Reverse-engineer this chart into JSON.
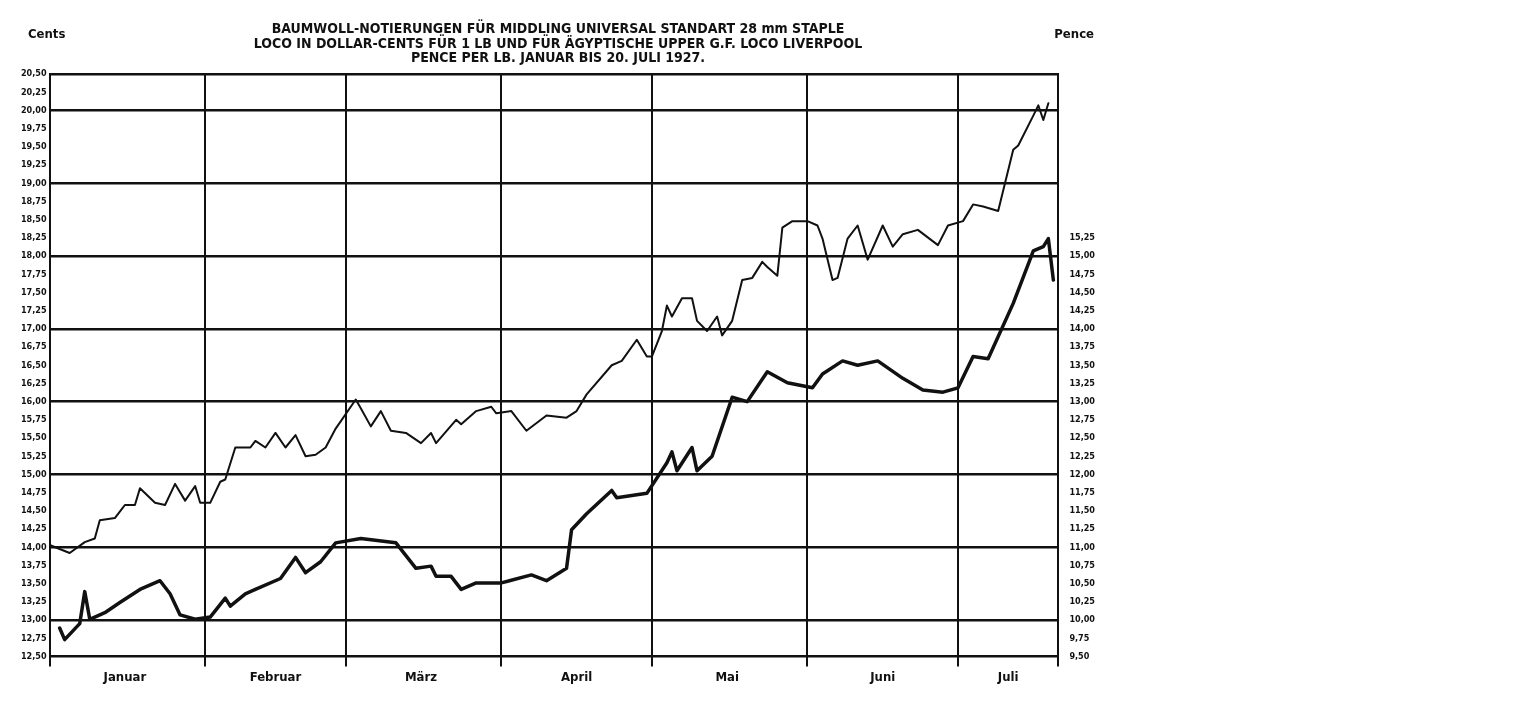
{
  "chart_data": {
    "type": "line",
    "title": [
      "BAUMWOLL-NOTIERUNGEN FÜR MIDDLING UNIVERSAL STANDART 28 mm STAPLE",
      "LOCO IN DOLLAR-CENTS FÜR 1 LB UND FÜR ÄGYPTISCHE UPPER G.F. LOCO LIVERPOOL",
      "PENCE PER LB. JANUAR BIS 20. JULI 1927."
    ],
    "ylabel": "Cents",
    "y2label": "Pence",
    "xlim": [
      "1927-01-01",
      "1927-07-21"
    ],
    "xticks": [
      {
        "value": "1927-01-01",
        "label": null
      },
      {
        "value": "1927-01-16",
        "label": "Januar"
      },
      {
        "value": "1927-02-01",
        "label": null
      },
      {
        "value": "1927-02-15",
        "label": "Februar"
      },
      {
        "value": "1927-03-01",
        "label": null
      },
      {
        "value": "1927-03-16",
        "label": "März"
      },
      {
        "value": "1927-04-01",
        "label": null
      },
      {
        "value": "1927-04-16",
        "label": "April"
      },
      {
        "value": "1927-05-01",
        "label": null
      },
      {
        "value": "1927-05-16",
        "label": "Mai"
      },
      {
        "value": "1927-06-01",
        "label": null
      },
      {
        "value": "1927-06-16",
        "label": "Juni"
      },
      {
        "value": "1927-07-01",
        "label": null
      },
      {
        "value": "1927-07-11",
        "label": "Juli"
      },
      {
        "value": "1927-07-21",
        "label": null
      }
    ],
    "ylim": [
      12.5,
      20.5
    ],
    "yticks": [
      {
        "value": 12.5,
        "label": "12,50"
      },
      {
        "value": 12.75,
        "label": "12,75"
      },
      {
        "value": 13,
        "label": "13,00"
      },
      {
        "value": 13.25,
        "label": "13,25"
      },
      {
        "value": 13.5,
        "label": "13,50"
      },
      {
        "value": 13.75,
        "label": "13,75"
      },
      {
        "value": 14,
        "label": "14,00"
      },
      {
        "value": 14.25,
        "label": "14,25"
      },
      {
        "value": 14.5,
        "label": "14,50"
      },
      {
        "value": 14.75,
        "label": "14,75"
      },
      {
        "value": 15,
        "label": "15,00"
      },
      {
        "value": 15.25,
        "label": "15,25"
      },
      {
        "value": 15.5,
        "label": "15,50"
      },
      {
        "value": 15.75,
        "label": "15,75"
      },
      {
        "value": 16,
        "label": "16,00"
      },
      {
        "value": 16.25,
        "label": "16,25"
      },
      {
        "value": 16.5,
        "label": "16,50"
      },
      {
        "value": 16.75,
        "label": "16,75"
      },
      {
        "value": 17,
        "label": "17,00"
      },
      {
        "value": 17.25,
        "label": "17,25"
      },
      {
        "value": 17.5,
        "label": "17,50"
      },
      {
        "value": 17.75,
        "label": "17,75"
      },
      {
        "value": 18,
        "label": "18,00"
      },
      {
        "value": 18.25,
        "label": "18,25"
      },
      {
        "value": 18.5,
        "label": "18,50"
      },
      {
        "value": 18.75,
        "label": "18,75"
      },
      {
        "value": 19,
        "label": "19,00"
      },
      {
        "value": 19.25,
        "label": "19,25"
      },
      {
        "value": 19.5,
        "label": "19,50"
      },
      {
        "value": 19.75,
        "label": "19,75"
      },
      {
        "value": 20,
        "label": "20,00"
      },
      {
        "value": 20.25,
        "label": "20,25"
      },
      {
        "value": 20.5,
        "label": "20,50"
      }
    ],
    "y2lim": [
      9.5,
      17.5
    ],
    "y2ticks": [
      {
        "value": 9.5,
        "label": "9,50"
      },
      {
        "value": 9.75,
        "label": "9,75"
      },
      {
        "value": 10,
        "label": "10,00"
      },
      {
        "value": 10.25,
        "label": "10,25"
      },
      {
        "value": 10.5,
        "label": "10,50"
      },
      {
        "value": 10.75,
        "label": "10,75"
      },
      {
        "value": 11,
        "label": "11,00"
      },
      {
        "value": 11.25,
        "label": "11,25"
      },
      {
        "value": 11.5,
        "label": "11,50"
      },
      {
        "value": 11.75,
        "label": "11,75"
      },
      {
        "value": 12,
        "label": "12,00"
      },
      {
        "value": 12.25,
        "label": "12,25"
      },
      {
        "value": 12.5,
        "label": "12,50"
      },
      {
        "value": 12.75,
        "label": "12,75"
      },
      {
        "value": 13,
        "label": "13,00"
      },
      {
        "value": 13.25,
        "label": "13,25"
      },
      {
        "value": 13.5,
        "label": "13,50"
      },
      {
        "value": 13.75,
        "label": "13,75"
      },
      {
        "value": 14,
        "label": "14,00"
      },
      {
        "value": 14.25,
        "label": "14,25"
      },
      {
        "value": 14.5,
        "label": "14,50"
      },
      {
        "value": 14.75,
        "label": "14,75"
      },
      {
        "value": 15,
        "label": "15,00"
      },
      {
        "value": 15.25,
        "label": "15,25"
      }
    ],
    "grid": true,
    "legend": false,
    "marker": "none",
    "line_style": "solid",
    "series": [
      {
        "color": "#111111",
        "x": [
          "1927-01-01",
          "1927-01-05",
          "1927-01-08",
          "1927-01-10",
          "1927-01-11",
          "1927-01-14",
          "1927-01-16",
          "1927-01-18",
          "1927-01-19",
          "1927-01-22",
          "1927-01-24",
          "1927-01-26",
          "1927-01-28",
          "1927-01-30",
          "1927-01-31",
          "1927-02-02",
          "1927-02-04",
          "1927-02-05",
          "1927-02-07",
          "1927-02-10",
          "1927-02-11",
          "1927-02-13",
          "1927-02-15",
          "1927-02-17",
          "1927-02-19",
          "1927-02-21",
          "1927-02-23",
          "1927-02-25",
          "1927-02-27",
          "1927-03-03",
          "1927-03-04",
          "1927-03-06",
          "1927-03-08",
          "1927-03-10",
          "1927-03-13",
          "1927-03-16",
          "1927-03-18",
          "1927-03-19",
          "1927-03-23",
          "1927-03-24",
          "1927-03-27",
          "1927-03-30",
          "1927-03-31",
          "1927-04-03",
          "1927-04-06",
          "1927-04-10",
          "1927-04-14",
          "1927-04-16",
          "1927-04-18",
          "1927-04-23",
          "1927-04-25",
          "1927-04-28",
          "1927-04-30",
          "1927-05-01",
          "1927-05-03",
          "1927-05-04",
          "1927-05-05",
          "1927-05-07",
          "1927-05-09",
          "1927-05-10",
          "1927-05-12",
          "1927-05-14",
          "1927-05-15",
          "1927-05-17",
          "1927-05-19",
          "1927-05-21",
          "1927-05-23",
          "1927-05-24",
          "1927-05-26",
          "1927-05-27",
          "1927-05-29",
          "1927-06-01",
          "1927-06-03",
          "1927-06-04",
          "1927-06-06",
          "1927-06-07",
          "1927-06-09",
          "1927-06-11",
          "1927-06-13",
          "1927-06-16",
          "1927-06-18",
          "1927-06-20",
          "1927-06-23",
          "1927-06-27",
          "1927-06-29",
          "1927-07-02",
          "1927-07-04",
          "1927-07-06",
          "1927-07-09",
          "1927-07-12",
          "1927-07-13",
          "1927-07-16",
          "1927-07-17",
          "1927-07-18",
          "1927-07-19"
        ],
        "values": [
          14.03,
          13.92,
          14.07,
          14.12,
          14.37,
          14.4,
          14.58,
          14.58,
          14.81,
          14.61,
          14.58,
          14.87,
          14.64,
          14.84,
          14.61,
          14.61,
          14.9,
          14.93,
          15.37,
          15.37,
          15.46,
          15.37,
          15.57,
          15.37,
          15.54,
          15.25,
          15.27,
          15.37,
          15.63,
          16.03,
          15.91,
          15.66,
          15.87,
          15.6,
          15.57,
          15.43,
          15.57,
          15.43,
          15.75,
          15.69,
          15.87,
          15.93,
          15.84,
          15.87,
          15.6,
          15.81,
          15.78,
          15.87,
          16.1,
          16.5,
          16.56,
          16.85,
          16.62,
          16.62,
          16.97,
          17.32,
          17.17,
          17.42,
          17.42,
          17.11,
          16.97,
          17.17,
          16.91,
          17.11,
          17.67,
          17.7,
          17.92,
          17.85,
          17.73,
          18.39,
          18.48,
          18.48,
          18.42,
          18.24,
          17.67,
          17.7,
          18.24,
          18.42,
          17.95,
          18.42,
          18.13,
          18.3,
          18.36,
          18.15,
          18.42,
          18.48,
          18.71,
          18.68,
          18.62,
          19.46,
          19.52,
          19.93,
          20.07,
          19.87,
          20.1
        ]
      },
      {
        "color": "#111111",
        "axis": "y2",
        "x": [
          "1927-01-03",
          "1927-01-04",
          "1927-01-07",
          "1927-01-08",
          "1927-01-09",
          "1927-01-12",
          "1927-01-15",
          "1927-01-19",
          "1927-01-23",
          "1927-01-25",
          "1927-01-27",
          "1927-01-30",
          "1927-02-02",
          "1927-02-05",
          "1927-02-06",
          "1927-02-09",
          "1927-02-11",
          "1927-02-16",
          "1927-02-19",
          "1927-02-21",
          "1927-02-24",
          "1927-02-27",
          "1927-03-04",
          "1927-03-11",
          "1927-03-15",
          "1927-03-18",
          "1927-03-19",
          "1927-03-22",
          "1927-03-24",
          "1927-03-27",
          "1927-04-01",
          "1927-04-07",
          "1927-04-10",
          "1927-04-14",
          "1927-04-15",
          "1927-04-18",
          "1927-04-23",
          "1927-04-24",
          "1927-04-30",
          "1927-05-04",
          "1927-05-05",
          "1927-05-06",
          "1927-05-09",
          "1927-05-10",
          "1927-05-13",
          "1927-05-17",
          "1927-05-20",
          "1927-05-24",
          "1927-05-28",
          "1927-06-02",
          "1927-06-04",
          "1927-06-08",
          "1927-06-11",
          "1927-06-15",
          "1927-06-20",
          "1927-06-24",
          "1927-06-28",
          "1927-07-01",
          "1927-07-04",
          "1927-07-07",
          "1927-07-12",
          "1927-07-16",
          "1927-07-18",
          "1927-07-19",
          "1927-07-20"
        ],
        "values": [
          9.89,
          9.73,
          9.95,
          10.39,
          10.01,
          10.1,
          10.24,
          10.42,
          10.54,
          10.36,
          10.07,
          10.01,
          10.04,
          10.3,
          10.19,
          10.36,
          10.42,
          10.57,
          10.86,
          10.65,
          10.8,
          11.06,
          11.12,
          11.06,
          10.71,
          10.74,
          10.6,
          10.6,
          10.42,
          10.51,
          10.51,
          10.62,
          10.54,
          10.71,
          11.24,
          11.46,
          11.78,
          11.68,
          11.74,
          12.16,
          12.31,
          12.05,
          12.37,
          12.05,
          12.25,
          13.06,
          13.0,
          13.41,
          13.26,
          13.19,
          13.38,
          13.56,
          13.5,
          13.56,
          13.32,
          13.16,
          13.13,
          13.19,
          13.62,
          13.59,
          14.35,
          15.07,
          15.13,
          15.24,
          14.67
        ]
      }
    ]
  }
}
